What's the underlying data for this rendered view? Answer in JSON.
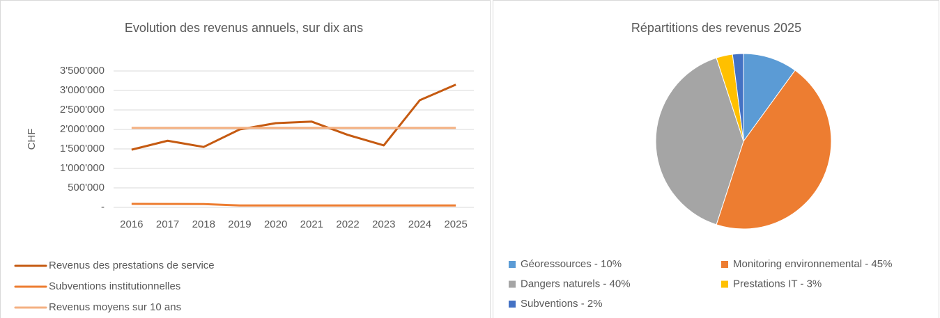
{
  "chart_data": [
    {
      "type": "line",
      "title": "Evolution des revenus annuels, sur dix ans",
      "y_label": "CHF",
      "categories": [
        "2016",
        "2017",
        "2018",
        "2019",
        "2020",
        "2021",
        "2022",
        "2023",
        "2024",
        "2025"
      ],
      "series": [
        {
          "name": "Revenus des prestations de service",
          "color": "#c55a11",
          "values": [
            1480000,
            1710000,
            1550000,
            2000000,
            2160000,
            2200000,
            1860000,
            1590000,
            2750000,
            3150000
          ]
        },
        {
          "name": "Subventions institutionnelles",
          "color": "#ed7d31",
          "values": [
            90000,
            88000,
            85000,
            50000,
            50000,
            50000,
            50000,
            50000,
            50000,
            50000
          ]
        },
        {
          "name": "Revenus moyens sur 10 ans",
          "color": "#f4b183",
          "values": [
            2040000,
            2040000,
            2040000,
            2040000,
            2040000,
            2040000,
            2040000,
            2040000,
            2040000,
            2040000
          ]
        }
      ],
      "ylim": [
        0,
        3500000
      ],
      "yticks": [
        {
          "value": 0,
          "label": "-"
        },
        {
          "value": 500000,
          "label": "500'000"
        },
        {
          "value": 1000000,
          "label": "1'000'000"
        },
        {
          "value": 1500000,
          "label": "1'500'000"
        },
        {
          "value": 2000000,
          "label": "2'000'000"
        },
        {
          "value": 2500000,
          "label": "2'500'000"
        },
        {
          "value": 3000000,
          "label": "3'000'000"
        },
        {
          "value": 3500000,
          "label": "3'500'000"
        }
      ],
      "grid": true,
      "legend": "bottom"
    },
    {
      "type": "pie",
      "title": "Répartitions des revenus 2025",
      "categories": [
        "Géoressources  - 10%",
        "Monitoring environnemental - 45%",
        "Dangers naturels - 40%",
        "Prestations IT - 3%",
        "Subventions - 2%"
      ],
      "values": [
        10,
        45,
        40,
        3,
        2
      ],
      "colors": [
        "#5b9bd5",
        "#ed7d31",
        "#a5a5a5",
        "#ffc000",
        "#4472c4"
      ],
      "legend": "bottom"
    }
  ]
}
